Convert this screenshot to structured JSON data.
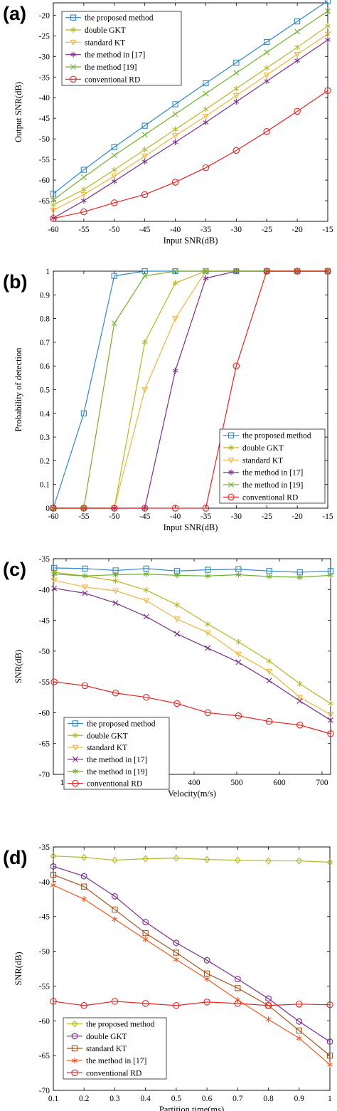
{
  "colors": {
    "blue": "#2f88c7",
    "olive": "#b5b823",
    "orange": "#eeb641",
    "purple": "#7c2d8c",
    "green": "#72b02f",
    "red": "#e8231f",
    "brown": "#a5531c",
    "orangered": "#f0571d"
  },
  "chart_data": [
    {
      "label": "(a)",
      "type": "line",
      "xlabel": "Input SNR(dB)",
      "ylabel": "Output SNR(dB)",
      "xlim": [
        -60,
        -15
      ],
      "ylim": [
        -70,
        -17
      ],
      "xticks": [
        -60,
        -55,
        -50,
        -45,
        -40,
        -35,
        -30,
        -25,
        -20,
        -15
      ],
      "yticks": [
        -65,
        -60,
        -55,
        -50,
        -45,
        -40,
        -35,
        -30,
        -25,
        -20
      ],
      "legend_position": "top-left",
      "x": [
        -60,
        -55,
        -50,
        -45,
        -40,
        -35,
        -30,
        -25,
        -20,
        -15
      ],
      "series": [
        {
          "name": "the proposed method",
          "color": "#2f88c7",
          "marker": "square",
          "values": [
            -63.3,
            -57.5,
            -52,
            -46.8,
            -41.6,
            -36.5,
            -31.5,
            -26.5,
            -21.5,
            -16.5
          ]
        },
        {
          "name": "double GKT",
          "color": "#b5b823",
          "marker": "star",
          "values": [
            -66,
            -62.3,
            -57.5,
            -52.6,
            -47.7,
            -42.8,
            -37.8,
            -32.8,
            -27.8,
            -22.6
          ]
        },
        {
          "name": "standard KT",
          "color": "#eeb641",
          "marker": "triangle-down",
          "values": [
            -67.3,
            -63.5,
            -59,
            -54.2,
            -49.2,
            -44.5,
            -39.5,
            -34.5,
            -29.5,
            -24.6
          ]
        },
        {
          "name": "the method in [17]",
          "color": "#7c2d8c",
          "marker": "star",
          "values": [
            -69.2,
            -65,
            -60.3,
            -55.5,
            -50.8,
            -46,
            -41,
            -36,
            -31,
            -26
          ]
        },
        {
          "name": "the method [19]",
          "color": "#72b02f",
          "marker": "x",
          "values": [
            -64.8,
            -59.3,
            -54,
            -49,
            -44,
            -39,
            -34,
            -29,
            -24,
            -19
          ]
        },
        {
          "name": "conventional RD",
          "color": "#e8231f",
          "marker": "circle",
          "values": [
            -69.3,
            -67.7,
            -65.5,
            -63.5,
            -60.5,
            -57,
            -52.8,
            -48.2,
            -43.3,
            -38.3
          ]
        }
      ]
    },
    {
      "label": "(b)",
      "type": "line",
      "xlabel": "Input SNR(dB)",
      "ylabel": "Probability of detection",
      "xlim": [
        -60,
        -15
      ],
      "ylim": [
        0,
        1
      ],
      "xticks": [
        -60,
        -55,
        -50,
        -45,
        -40,
        -35,
        -30,
        -25,
        -20,
        -15
      ],
      "yticks": [
        0,
        0.1,
        0.2,
        0.3,
        0.4,
        0.5,
        0.6,
        0.7,
        0.8,
        0.9,
        1
      ],
      "legend_position": "bottom-right",
      "x": [
        -60,
        -55,
        -50,
        -45,
        -40,
        -35,
        -30,
        -25,
        -20,
        -15
      ],
      "series": [
        {
          "name": "the proposed method",
          "color": "#2f88c7",
          "marker": "square",
          "values": [
            0,
            0.4,
            0.98,
            1,
            1,
            1,
            1,
            1,
            1,
            1
          ]
        },
        {
          "name": "double GKT",
          "color": "#b5b823",
          "marker": "star",
          "values": [
            0,
            0,
            0,
            0.7,
            0.95,
            1,
            1,
            1,
            1,
            1
          ]
        },
        {
          "name": "standard KT",
          "color": "#eeb641",
          "marker": "triangle-down",
          "values": [
            0,
            0,
            0,
            0.5,
            0.8,
            1,
            1,
            1,
            1,
            1
          ]
        },
        {
          "name": "the method in [17]",
          "color": "#7c2d8c",
          "marker": "star",
          "values": [
            0,
            0,
            0,
            0,
            0.58,
            0.97,
            1,
            1,
            1,
            1
          ]
        },
        {
          "name": "the method in [19]",
          "color": "#72b02f",
          "marker": "x",
          "values": [
            0,
            0,
            0.78,
            0.98,
            1,
            1,
            1,
            1,
            1,
            1
          ]
        },
        {
          "name": "conventional RD",
          "color": "#e8231f",
          "marker": "circle",
          "values": [
            0,
            0,
            0,
            0,
            0,
            0,
            0.6,
            1,
            1,
            1
          ]
        }
      ]
    },
    {
      "label": "(c)",
      "type": "line",
      "xlabel": "Velocity(m/s)",
      "ylabel": "SNR(dB)",
      "xlim": [
        70,
        720
      ],
      "ylim": [
        -70,
        -35
      ],
      "xticks": [
        100,
        200,
        300,
        400,
        500,
        600,
        700
      ],
      "yticks": [
        -70,
        -65,
        -60,
        -55,
        -50,
        -45,
        -40,
        -35
      ],
      "legend_position": "bottom-left",
      "x": [
        72,
        144,
        216,
        288,
        360,
        432,
        504,
        576,
        648,
        720
      ],
      "series": [
        {
          "name": "the proposed method",
          "color": "#2f88c7",
          "marker": "square",
          "values": [
            -36.5,
            -36.6,
            -36.9,
            -36.6,
            -37,
            -36.8,
            -36.7,
            -37,
            -37.2,
            -37
          ]
        },
        {
          "name": "double GKT",
          "color": "#b5b823",
          "marker": "star",
          "values": [
            -37.2,
            -37.8,
            -38.6,
            -40.1,
            -42.5,
            -45.6,
            -48.5,
            -51.6,
            -55.3,
            -58.5
          ]
        },
        {
          "name": "standard KT",
          "color": "#eeb641",
          "marker": "triangle-down",
          "values": [
            -38.5,
            -39.6,
            -40.2,
            -41.8,
            -44.8,
            -47,
            -50.5,
            -53.3,
            -57.5,
            -60.3
          ]
        },
        {
          "name": "the method in [17]",
          "color": "#7c2d8c",
          "marker": "x",
          "values": [
            -39.8,
            -40.6,
            -42.2,
            -44.4,
            -47.2,
            -49.5,
            -51.8,
            -54.8,
            -58.1,
            -61.2
          ]
        },
        {
          "name": "the method in [19]",
          "color": "#72b02f",
          "marker": "star",
          "values": [
            -37.5,
            -37.8,
            -37.6,
            -37.5,
            -37.7,
            -37.8,
            -37.6,
            -37.9,
            -38,
            -37.7
          ]
        },
        {
          "name": "conventional RD",
          "color": "#e8231f",
          "marker": "circle",
          "values": [
            -55,
            -55.6,
            -56.8,
            -57.5,
            -58.5,
            -60,
            -60.5,
            -61.4,
            -62,
            -63.4
          ]
        }
      ]
    },
    {
      "label": "(d)",
      "type": "line",
      "xlabel": "Partition time(ms)",
      "ylabel": "SNR(dB)",
      "xlim": [
        0.1,
        1
      ],
      "ylim": [
        -70,
        -35
      ],
      "xticks": [
        0.1,
        0.2,
        0.3,
        0.4,
        0.5,
        0.6,
        0.7,
        0.8,
        0.9,
        1
      ],
      "yticks": [
        -70,
        -65,
        -60,
        -55,
        -50,
        -45,
        -40,
        -35
      ],
      "legend_position": "bottom-left",
      "x": [
        0.1,
        0.2,
        0.3,
        0.4,
        0.5,
        0.6,
        0.7,
        0.8,
        0.9,
        1
      ],
      "series": [
        {
          "name": "the proposed method",
          "color": "#b5b823",
          "marker": "diamond",
          "values": [
            -36.3,
            -36.5,
            -36.9,
            -36.7,
            -36.6,
            -36.8,
            -36.9,
            -37,
            -37,
            -37.2
          ]
        },
        {
          "name": "double GKT",
          "color": "#7c2d8c",
          "marker": "hexagon",
          "values": [
            -37.8,
            -39.2,
            -42.1,
            -45.8,
            -48.8,
            -51.3,
            -54,
            -56.8,
            -60.1,
            -63
          ]
        },
        {
          "name": "standard KT",
          "color": "#a5531c",
          "marker": "square",
          "values": [
            -39,
            -40.7,
            -44,
            -47.4,
            -50.2,
            -53.2,
            -55.3,
            -57.8,
            -61.4,
            -65
          ]
        },
        {
          "name": "the method in [17]",
          "color": "#f0571d",
          "marker": "star",
          "values": [
            -40.5,
            -42.5,
            -45.4,
            -48.3,
            -51.2,
            -54,
            -57,
            -59.8,
            -62.5,
            -66.3
          ]
        },
        {
          "name": "conventional RD",
          "color": "#e8231f",
          "marker": "circle",
          "values": [
            -57.2,
            -57.8,
            -57.2,
            -57.5,
            -57.8,
            -57.3,
            -57.5,
            -57.8,
            -57.6,
            -57.7
          ]
        }
      ]
    }
  ]
}
